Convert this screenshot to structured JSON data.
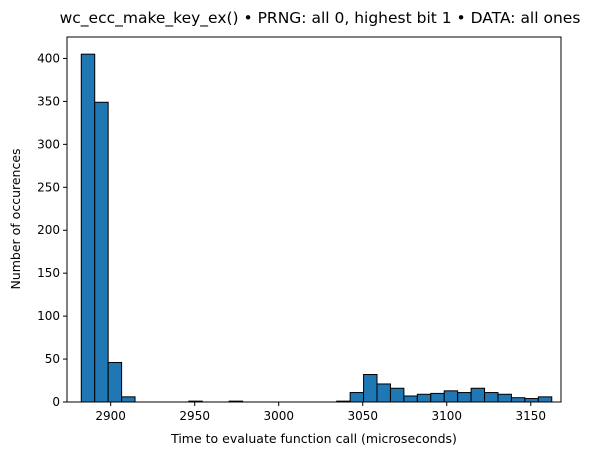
{
  "chart_data": {
    "type": "bar",
    "title": "wc_ecc_make_key_ex() • PRNG: all 0, highest bit 1 • DATA: all ones",
    "xlabel": "Time to evaluate function call (microseconds)",
    "ylabel": "Number of occurences",
    "xlim": [
      2874,
      3168
    ],
    "ylim": [
      0,
      425
    ],
    "grid": false,
    "bar_color": "#1f77b4",
    "edge_color": "#000000",
    "x_ticks": [
      2900,
      2950,
      3000,
      3050,
      3100,
      3150
    ],
    "y_ticks": [
      0,
      50,
      100,
      150,
      200,
      250,
      300,
      350,
      400
    ],
    "bin_edges": [
      2882.5,
      2890.5,
      2898.5,
      2906.5,
      2914.5,
      2922.5,
      2930.5,
      2938.5,
      2946.5,
      2954.5,
      2962.5,
      2970.5,
      2978.5,
      2986.5,
      2994.5,
      3002.5,
      3010.5,
      3018.5,
      3026.5,
      3034.5,
      3042.5,
      3050.5,
      3058.5,
      3066.5,
      3074.5,
      3082.5,
      3090.5,
      3098.5,
      3106.5,
      3114.5,
      3122.5,
      3130.5,
      3138.5,
      3146.5,
      3154.5,
      3162.5
    ],
    "values": [
      405,
      349,
      46,
      6,
      0,
      0,
      0,
      0,
      1,
      0,
      0,
      1,
      0,
      0,
      0,
      0,
      0,
      0,
      0,
      1,
      11,
      32,
      21,
      16,
      7,
      9,
      10,
      13,
      11,
      16,
      11,
      9,
      5,
      4,
      6
    ]
  }
}
